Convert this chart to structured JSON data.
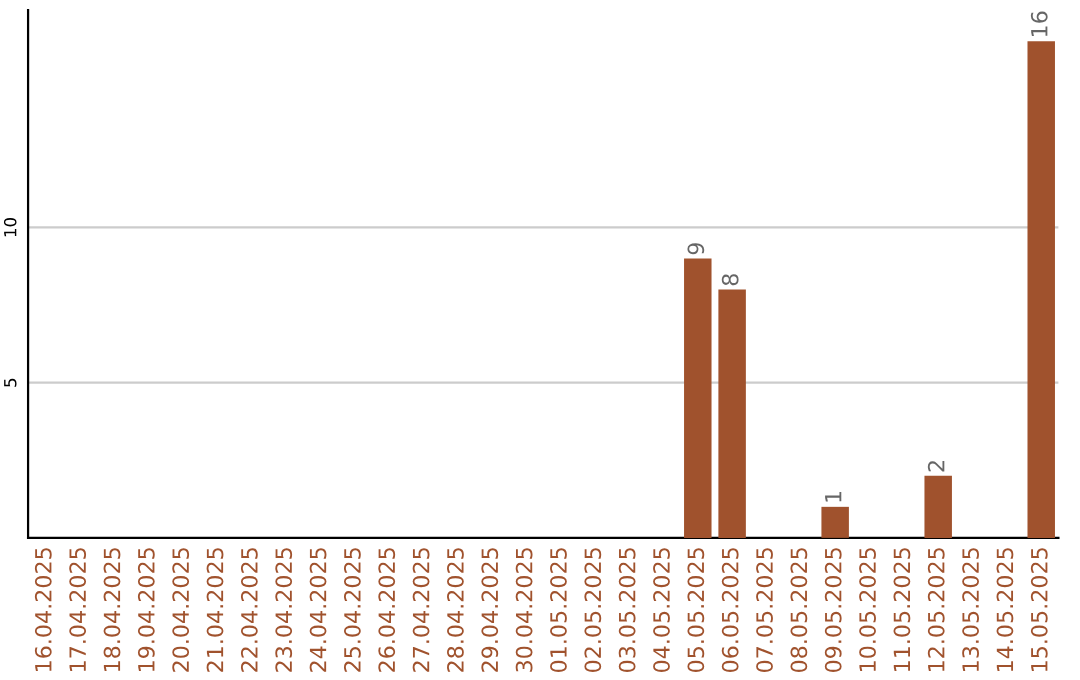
{
  "chart_data": {
    "type": "bar",
    "categories": [
      "16.04.2025",
      "17.04.2025",
      "18.04.2025",
      "19.04.2025",
      "20.04.2025",
      "21.04.2025",
      "22.04.2025",
      "23.04.2025",
      "24.04.2025",
      "25.04.2025",
      "26.04.2025",
      "27.04.2025",
      "28.04.2025",
      "29.04.2025",
      "30.04.2025",
      "01.05.2025",
      "02.05.2025",
      "03.05.2025",
      "04.05.2025",
      "05.05.2025",
      "06.05.2025",
      "07.05.2025",
      "08.05.2025",
      "09.05.2025",
      "10.05.2025",
      "11.05.2025",
      "12.05.2025",
      "13.05.2025",
      "14.05.2025",
      "15.05.2025"
    ],
    "values": [
      0,
      0,
      0,
      0,
      0,
      0,
      0,
      0,
      0,
      0,
      0,
      0,
      0,
      0,
      0,
      0,
      0,
      0,
      0,
      9,
      8,
      0,
      0,
      1,
      0,
      0,
      2,
      0,
      0,
      16
    ],
    "value_labels": [
      null,
      null,
      null,
      null,
      null,
      null,
      null,
      null,
      null,
      null,
      null,
      null,
      null,
      null,
      null,
      null,
      null,
      null,
      null,
      "9",
      "8",
      null,
      null,
      "1",
      null,
      null,
      "2",
      null,
      null,
      "16"
    ],
    "color": "#a0522d",
    "ylim": [
      0,
      17
    ],
    "yticks": [
      5,
      10
    ],
    "grid": "y"
  }
}
